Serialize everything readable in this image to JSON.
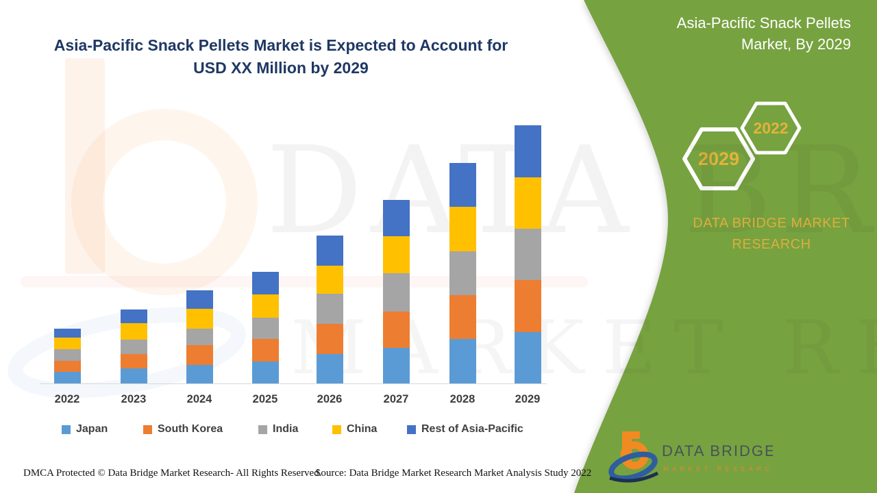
{
  "page": {
    "background": "#FFFFFF"
  },
  "header": {
    "title_line1": "Asia-Pacific Snack Pellets Market is Expected to Account for",
    "title_line2": "USD XX Million by 2029",
    "title_color": "#1F3864"
  },
  "chart_data": {
    "type": "bar",
    "stacked": true,
    "title": "Asia-Pacific Snack Pellets Market is Expected to Account for USD XX Million by 2029",
    "categories": [
      "2022",
      "2023",
      "2024",
      "2025",
      "2026",
      "2027",
      "2028",
      "2029"
    ],
    "series": [
      {
        "name": "Japan",
        "color": "#5B9BD5",
        "values": [
          17,
          22,
          27,
          32,
          43,
          52,
          65,
          75
        ]
      },
      {
        "name": "South Korea",
        "color": "#ED7D31",
        "values": [
          16,
          21,
          29,
          33,
          44,
          53,
          64,
          76
        ]
      },
      {
        "name": "India",
        "color": "#A5A5A5",
        "values": [
          17,
          21,
          24,
          31,
          44,
          56,
          64,
          75
        ]
      },
      {
        "name": "China",
        "color": "#FFC000",
        "values": [
          17,
          24,
          29,
          34,
          41,
          54,
          65,
          75
        ]
      },
      {
        "name": "Rest of Asia-Pacific",
        "color": "#4472C4",
        "values": [
          13,
          20,
          27,
          33,
          44,
          53,
          64,
          76
        ]
      }
    ],
    "totals": [
      80,
      108,
      136,
      163,
      216,
      268,
      322,
      377
    ],
    "value_units": "relative height (actual USD values undisclosed, shown as XX Million)",
    "xlabel": "",
    "ylabel": "",
    "y_axis_shown": false,
    "grid": false,
    "legend_position": "bottom"
  },
  "side_panel": {
    "color": "#77A240",
    "title_line1": "Asia-Pacific Snack Pellets",
    "title_line2": "Market, By 2029",
    "hexagons": [
      {
        "label": "2029"
      },
      {
        "label": "2022"
      }
    ],
    "hexagon_text_color": "#E3B33A",
    "brand_line1": "DATA BRIDGE MARKET",
    "brand_line2": "RESEARCH",
    "brand_text_color": "#DCAE3C"
  },
  "watermark": {
    "line1": "DATA BRIDGE",
    "line2": "MARKET RESEARCH"
  },
  "logo": {
    "name": "DATA BRIDGE",
    "subtitle": "MARKET RESEARCH",
    "orange": "#F28A21",
    "blue": "#2E5E9E"
  },
  "footer": {
    "dmca": "DMCA Protected © Data Bridge Market Research- All Rights Reserved.",
    "source": "Source: Data Bridge Market Research Market Analysis Study 2022"
  }
}
